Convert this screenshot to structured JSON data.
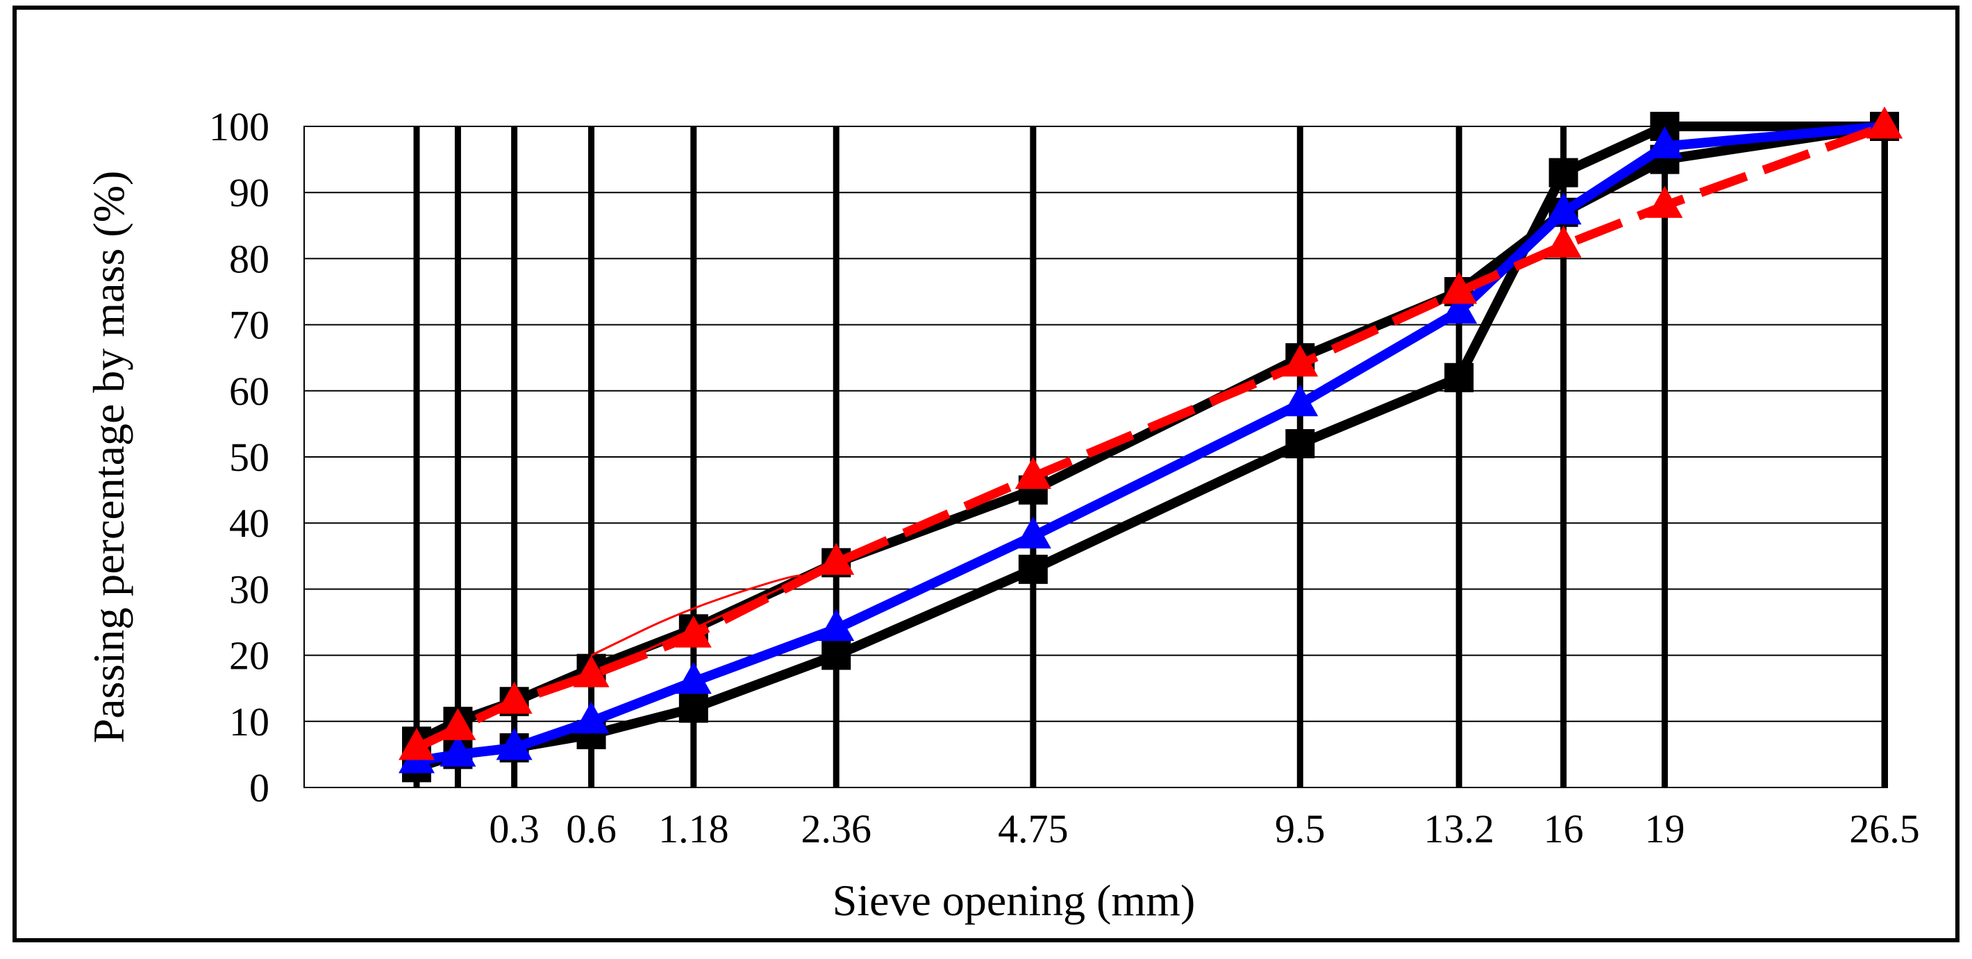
{
  "chart_data": {
    "type": "line",
    "title": "",
    "xlabel": "Sieve opening (mm)",
    "ylabel": "Passing percentage by mass (%)",
    "x_scale": "power 0.45",
    "x": [
      0.075,
      0.15,
      0.3,
      0.6,
      1.18,
      2.36,
      4.75,
      9.5,
      13.2,
      16,
      19,
      26.5
    ],
    "x_tick_labels": [
      "",
      "",
      "0.3",
      "0.6",
      "1.18",
      "2.36",
      "4.75",
      "9.5",
      "13.2",
      "16",
      "19",
      "26.5"
    ],
    "ylim": [
      0,
      100
    ],
    "y_ticks": [
      0,
      10,
      20,
      30,
      40,
      50,
      60,
      70,
      80,
      90,
      100
    ],
    "vertical_grid": true,
    "horizontal_grid": true,
    "legend": "none",
    "series": [
      {
        "color": "#000000",
        "marker": "square",
        "line": "solid",
        "values": [
          3,
          5,
          6,
          8,
          12,
          20,
          33,
          52,
          62,
          93,
          100,
          100
        ]
      },
      {
        "color": "#000000",
        "marker": "square",
        "line": "solid",
        "values": [
          7,
          10,
          13,
          18,
          24,
          34,
          45,
          65,
          75,
          87,
          95,
          100
        ]
      },
      {
        "color": "#0000ff",
        "marker": "triangle",
        "line": "solid",
        "values": [
          4,
          5,
          6,
          10,
          16,
          24,
          38,
          58,
          72,
          87,
          97,
          100
        ]
      },
      {
        "color": "#ff0000",
        "marker": "triangle",
        "line": "dashed",
        "values": [
          6,
          9,
          13,
          17,
          23,
          34,
          47,
          64,
          75,
          82,
          88,
          100
        ]
      }
    ],
    "annotation_curve": {
      "color": "#ff0000",
      "line": "thin",
      "points": [
        [
          0.6,
          20
        ],
        [
          1.18,
          27.5
        ],
        [
          2.36,
          34
        ],
        [
          1.18,
          24
        ],
        [
          0.6,
          17
        ]
      ]
    }
  }
}
